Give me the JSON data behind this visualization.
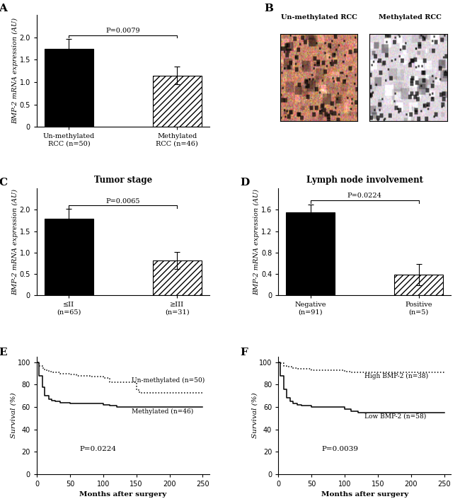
{
  "panel_A": {
    "categories": [
      "Un-methylated\nRCC (n=50)",
      "Methylated\nRCC (n=46)"
    ],
    "values": [
      1.75,
      1.15
    ],
    "errors": [
      0.22,
      0.2
    ],
    "ylim": [
      0,
      2.5
    ],
    "yticks": [
      0,
      0.5,
      1.0,
      1.5,
      2.0
    ],
    "ylabel": "BMP-2 mRNA expression (AU)",
    "pvalue": "P=0.0079",
    "bar_colors": [
      "black",
      "white"
    ],
    "hatch": [
      null,
      "////"
    ],
    "title": ""
  },
  "panel_C": {
    "categories": [
      "≤II\n(n=65)",
      "≥III\n(n=31)"
    ],
    "values": [
      1.8,
      0.82
    ],
    "errors": [
      0.22,
      0.2
    ],
    "ylim": [
      0,
      2.5
    ],
    "yticks": [
      0,
      0.5,
      1.0,
      1.5,
      2.0
    ],
    "ylabel": "BMP-2 mRNA expression (AU)",
    "pvalue": "P=0.0065",
    "title": "Tumor stage",
    "bar_colors": [
      "black",
      "white"
    ],
    "hatch": [
      null,
      "////"
    ]
  },
  "panel_D": {
    "categories": [
      "Negative\n(n=91)",
      "Positive\n(n=5)"
    ],
    "values": [
      1.55,
      0.38
    ],
    "errors": [
      0.15,
      0.2
    ],
    "ylim": [
      0,
      2.0
    ],
    "yticks": [
      0,
      0.4,
      0.8,
      1.2,
      1.6
    ],
    "ylabel": "BMP-2 mRNA expression (AU)",
    "pvalue": "P=0.0224",
    "title": "Lymph node involvement",
    "bar_colors": [
      "black",
      "white"
    ],
    "hatch": [
      null,
      "////"
    ]
  },
  "panel_E": {
    "unmethylated_x": [
      0,
      3,
      8,
      12,
      18,
      25,
      35,
      50,
      60,
      80,
      100,
      110,
      150,
      155,
      200,
      210,
      250
    ],
    "unmethylated_y": [
      100,
      97,
      95,
      93,
      92,
      91,
      90,
      89,
      88,
      87,
      86,
      82,
      75,
      73,
      73,
      73,
      73
    ],
    "methylated_x": [
      0,
      3,
      8,
      12,
      18,
      22,
      28,
      35,
      50,
      100,
      110,
      120,
      200,
      210,
      250
    ],
    "methylated_y": [
      100,
      88,
      78,
      70,
      67,
      66,
      65,
      64,
      63,
      62,
      61,
      60,
      60,
      60,
      60
    ],
    "xlabel": "Months after surgery",
    "ylabel": "Survival (%)",
    "ylim": [
      0,
      105
    ],
    "xlim": [
      0,
      260
    ],
    "yticks": [
      0,
      20,
      40,
      60,
      80,
      100
    ],
    "xticks": [
      0,
      50,
      100,
      150,
      200,
      250
    ],
    "pvalue": "P=0.0224",
    "label_unmethylated": "Un-methylated (n=50)",
    "label_methylated": "Methylated (n=46)"
  },
  "panel_F": {
    "high_x": [
      0,
      3,
      8,
      12,
      20,
      30,
      50,
      100,
      110,
      150,
      200,
      210,
      250
    ],
    "high_y": [
      100,
      99,
      97,
      96,
      95,
      94,
      93,
      92,
      91,
      91,
      91,
      91,
      91
    ],
    "low_x": [
      0,
      3,
      8,
      12,
      18,
      22,
      28,
      35,
      50,
      100,
      110,
      120,
      200,
      210,
      250
    ],
    "low_y": [
      100,
      88,
      76,
      68,
      65,
      63,
      62,
      61,
      60,
      58,
      56,
      55,
      55,
      55,
      55
    ],
    "xlabel": "Months after surgery",
    "ylabel": "Survival (%)",
    "ylim": [
      0,
      105
    ],
    "xlim": [
      0,
      260
    ],
    "yticks": [
      0,
      20,
      40,
      60,
      80,
      100
    ],
    "xticks": [
      0,
      50,
      100,
      150,
      200,
      250
    ],
    "pvalue": "P=0.0039",
    "label_high": "High BMP-2 (n=38)",
    "label_low": "Low BMP-2 (n=58)"
  }
}
